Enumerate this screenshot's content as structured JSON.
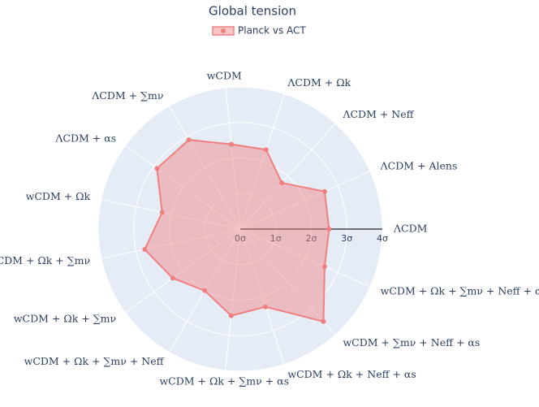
{
  "chart_data": {
    "type": "radar",
    "title": "Global tension",
    "categories": [
      "ΛCDM",
      "ΛCDM + Alens",
      "ΛCDM + Neff",
      "ΛCDM + Ωk",
      "wCDM",
      "ΛCDM + ∑mν",
      "ΛCDM + αs",
      "wCDM + Ωk",
      "ΛCDM + Ωk + ∑mν",
      "wCDM + Ωk + ∑mν",
      "wCDM + Ωk + ∑mν + Neff",
      "wCDM + Ωk + ∑mν + αs",
      "wCDM + Ωk + Neff + αs",
      "wCDM + ∑mν + Neff + αs",
      "wCDM + Ωk + ∑mν + Neff + αs"
    ],
    "series": [
      {
        "name": "Planck vs ACT",
        "color": "#f08080",
        "values": [
          2.5,
          2.6,
          1.75,
          2.35,
          2.4,
          2.9,
          2.9,
          2.25,
          2.75,
          2.35,
          2.0,
          2.45,
          2.3,
          3.5,
          2.6
        ]
      }
    ],
    "rlim": [
      0,
      4
    ],
    "rticks": [
      {
        "value": 0,
        "label": "0σ"
      },
      {
        "value": 1,
        "label": "1σ"
      },
      {
        "value": 2,
        "label": "2σ"
      },
      {
        "value": 3,
        "label": "3σ"
      },
      {
        "value": 4,
        "label": "4σ"
      }
    ],
    "grid": true
  }
}
